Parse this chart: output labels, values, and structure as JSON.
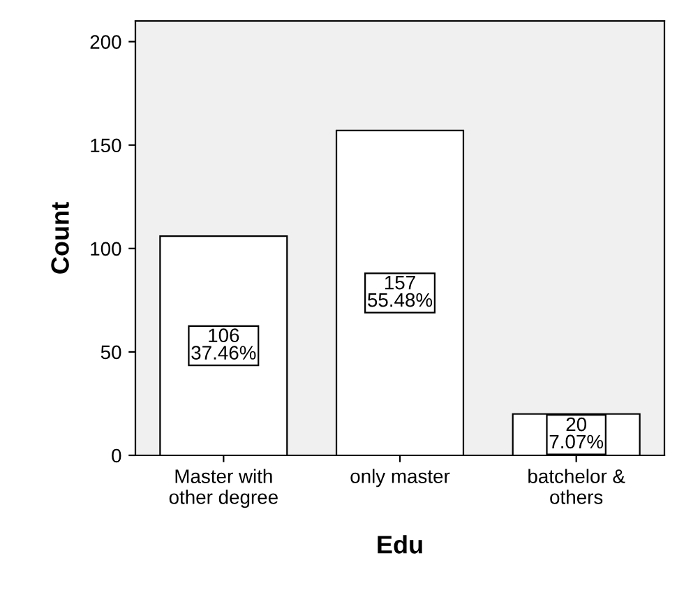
{
  "chart_data": {
    "type": "bar",
    "xlabel": "Edu",
    "ylabel": "Count",
    "categories": [
      "Master with\nother degree",
      "only master",
      "batchelor &\nothers"
    ],
    "values": [
      106,
      157,
      20
    ],
    "value_labels": [
      "106\n37.46%",
      "157\n55.48%",
      "20\n7.07%"
    ],
    "color": "#ffffff",
    "ylim": [
      0,
      210
    ],
    "yticks": [
      0,
      50,
      100,
      150,
      200
    ],
    "grid": false,
    "legend": false
  }
}
